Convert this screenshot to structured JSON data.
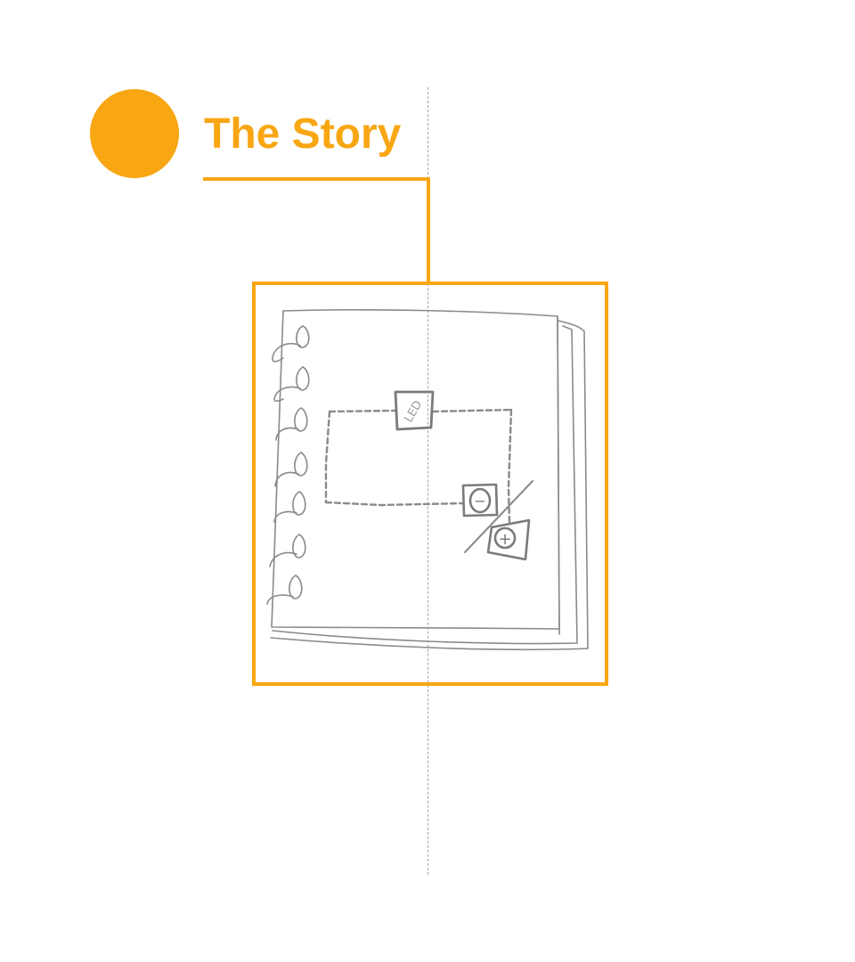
{
  "header": {
    "title": "The Story"
  },
  "sketch": {
    "led_label": "LED",
    "minus_symbol": "−",
    "plus_symbol": "+"
  },
  "colors": {
    "accent": "#f9a613",
    "sketch_stroke": "#8a8a8a",
    "guide": "#a6a6a6"
  },
  "icons": {
    "marker": "orange-circle-icon",
    "illustration": "spiral-notebook-icon"
  }
}
